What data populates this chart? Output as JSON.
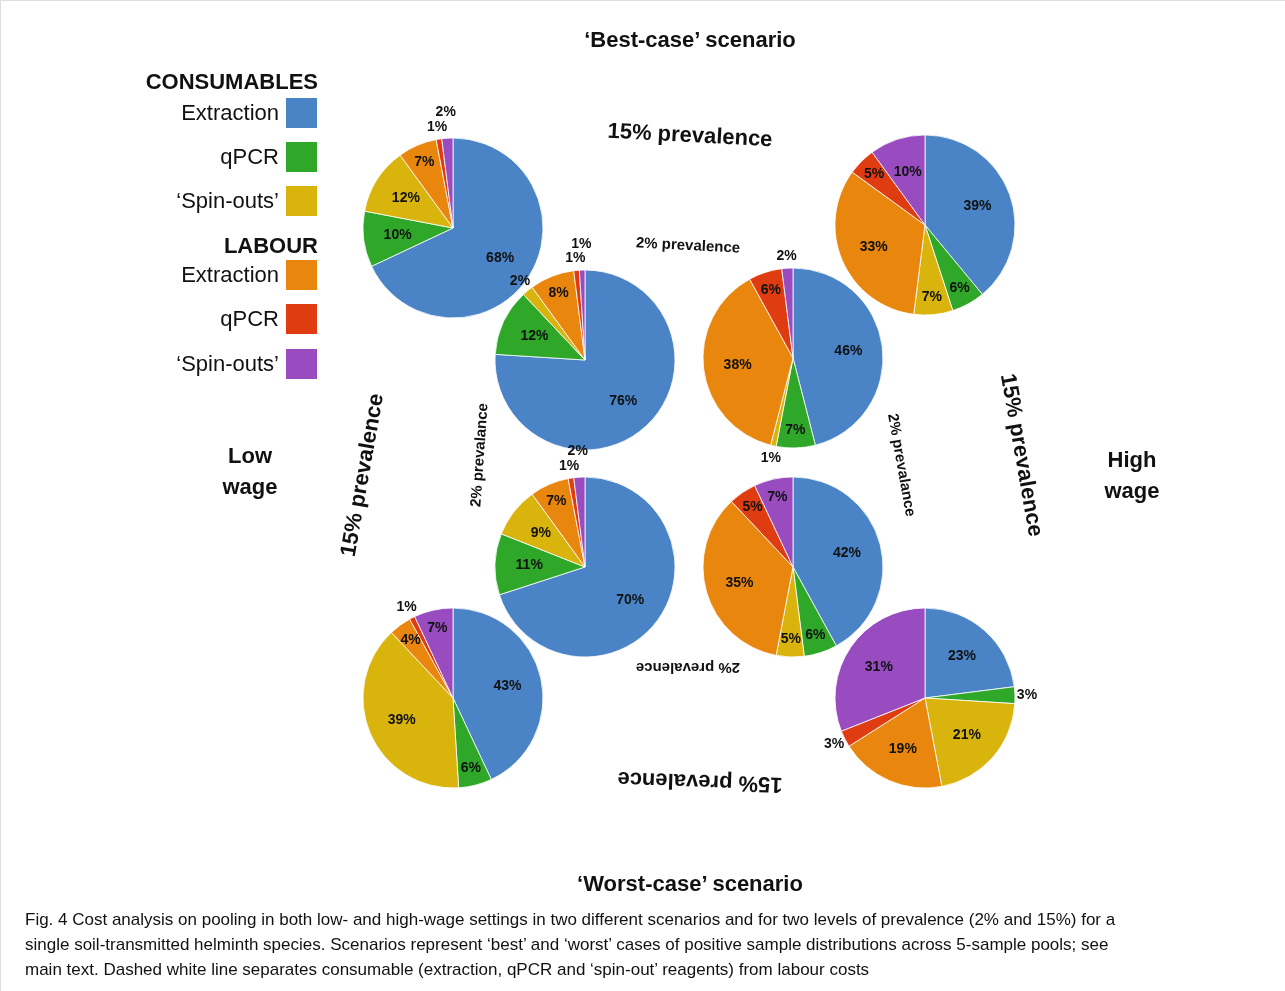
{
  "chart_data": [
    {
      "type": "other",
      "annotations": [
        "‘Best-case’ scenario",
        "‘Worst-case’ scenario",
        "Low wage",
        "High wage",
        "15% prevalence",
        "15% prevalence",
        "15% prevalence",
        "15% prevalence",
        "2% prevalence",
        "2% prevalance",
        "2% prevalence",
        "2% prevalance",
        "CONSUMABLES",
        "LABOUR",
        "Fig. 4  Cost analysis on pooling in both low- and high-wage settings in two different scenarios and for two levels of prevalence (2% and 15%) for a single soil-transmitted helminth species. Scenarios represent ‘best’ and ‘worst’ cases of positive sample distributions across 5-sample pools; see main text. Dashed white line separates consumable (extraction, qPCR and ‘spin-out’ reagents) from labour costs"
      ]
    },
    {
      "type": "pie",
      "legend": "left",
      "categories": [
        "Extraction",
        "qPCR",
        "‘Spin-outs’",
        "Extraction",
        "qPCR",
        "‘Spin-outs’"
      ],
      "values": [
        68,
        10,
        12,
        7,
        1,
        2
      ],
      "value_labels": [
        "68%",
        "10%",
        "12%",
        "7%",
        "1%",
        "2%"
      ],
      "colors": [
        "#4a84c6",
        "#2fa82a",
        "#d8b40c",
        "#e8860e",
        "#e03c12",
        "#984cc0"
      ]
    },
    {
      "type": "pie",
      "values": [
        76,
        12,
        2,
        8,
        1,
        1
      ],
      "value_labels": [
        "76%",
        "12%",
        "2%",
        "8%",
        "1%",
        "1%"
      ],
      "colors": [
        "#4a84c6",
        "#2fa82a",
        "#d8b40c",
        "#e8860e",
        "#e03c12",
        "#984cc0"
      ]
    },
    {
      "type": "pie",
      "values": [
        46,
        7,
        1,
        38,
        6,
        2
      ],
      "value_labels": [
        "46%",
        "7%",
        "1%",
        "38%",
        "6%",
        "2%"
      ],
      "colors": [
        "#4a84c6",
        "#2fa82a",
        "#d8b40c",
        "#e8860e",
        "#e03c12",
        "#984cc0"
      ]
    },
    {
      "type": "pie",
      "values": [
        39,
        6,
        7,
        33,
        5,
        10
      ],
      "value_labels": [
        "39%",
        "6%",
        "7%",
        "33%",
        "5%",
        "10%"
      ],
      "colors": [
        "#4a84c6",
        "#2fa82a",
        "#d8b40c",
        "#e8860e",
        "#e03c12",
        "#984cc0"
      ]
    },
    {
      "type": "pie",
      "values": [
        70,
        11,
        9,
        7,
        1,
        2
      ],
      "value_labels": [
        "70%",
        "11%",
        "9%",
        "7%",
        "1%",
        "2%"
      ],
      "colors": [
        "#4a84c6",
        "#2fa82a",
        "#d8b40c",
        "#e8860e",
        "#e03c12",
        "#984cc0"
      ]
    },
    {
      "type": "pie",
      "values": [
        42,
        6,
        5,
        35,
        5,
        7
      ],
      "value_labels": [
        "42%",
        "6%",
        "5%",
        "35%",
        "5%",
        "7%"
      ],
      "colors": [
        "#4a84c6",
        "#2fa82a",
        "#d8b40c",
        "#e8860e",
        "#e03c12",
        "#984cc0"
      ]
    },
    {
      "type": "pie",
      "values": [
        43,
        6,
        39,
        4,
        1,
        7
      ],
      "value_labels": [
        "43%",
        "6%",
        "39%",
        "4%",
        "1%",
        "7%"
      ],
      "colors": [
        "#4a84c6",
        "#2fa82a",
        "#d8b40c",
        "#e8860e",
        "#e03c12",
        "#984cc0"
      ]
    },
    {
      "type": "pie",
      "values": [
        23,
        3,
        21,
        19,
        3,
        31
      ],
      "value_labels": [
        "23%",
        "3%",
        "21%",
        "19%",
        "3%",
        "31%"
      ],
      "colors": [
        "#4a84c6",
        "#2fa82a",
        "#d8b40c",
        "#e8860e",
        "#e03c12",
        "#984cc0"
      ]
    }
  ]
}
